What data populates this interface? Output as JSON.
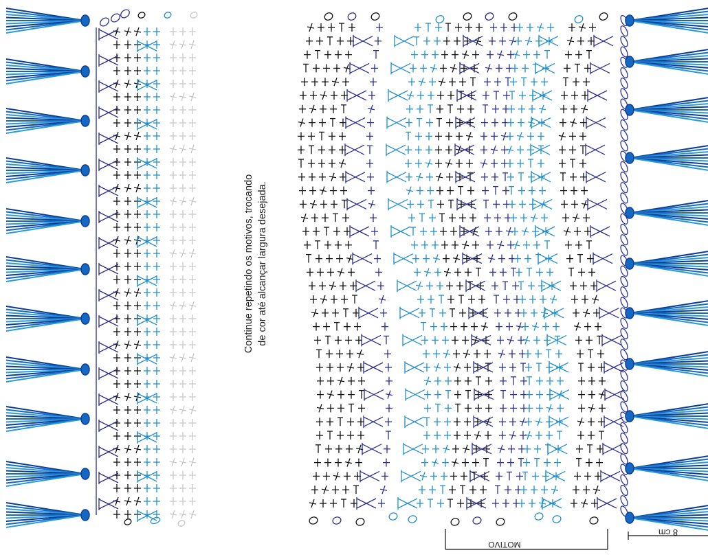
{
  "note": {
    "line1": "Continue repetindo os motivos, trocando",
    "line2": "de cor até alcançar largura desejada."
  },
  "labels": {
    "motivo": "MOTIVO",
    "scale": "8 cm"
  },
  "colors": {
    "black": "#111111",
    "navy": "#2b2f8f",
    "cyan": "#1f8fcf",
    "grey": "#c8c8c8",
    "tassel_dark": "#0a3d9a",
    "tassel_mid": "#1568c0",
    "tassel_light": "#2a9ad8"
  },
  "symbols": {
    "single_crochet": "+",
    "half_double": "T",
    "cross": "X",
    "chain": "oval"
  }
}
